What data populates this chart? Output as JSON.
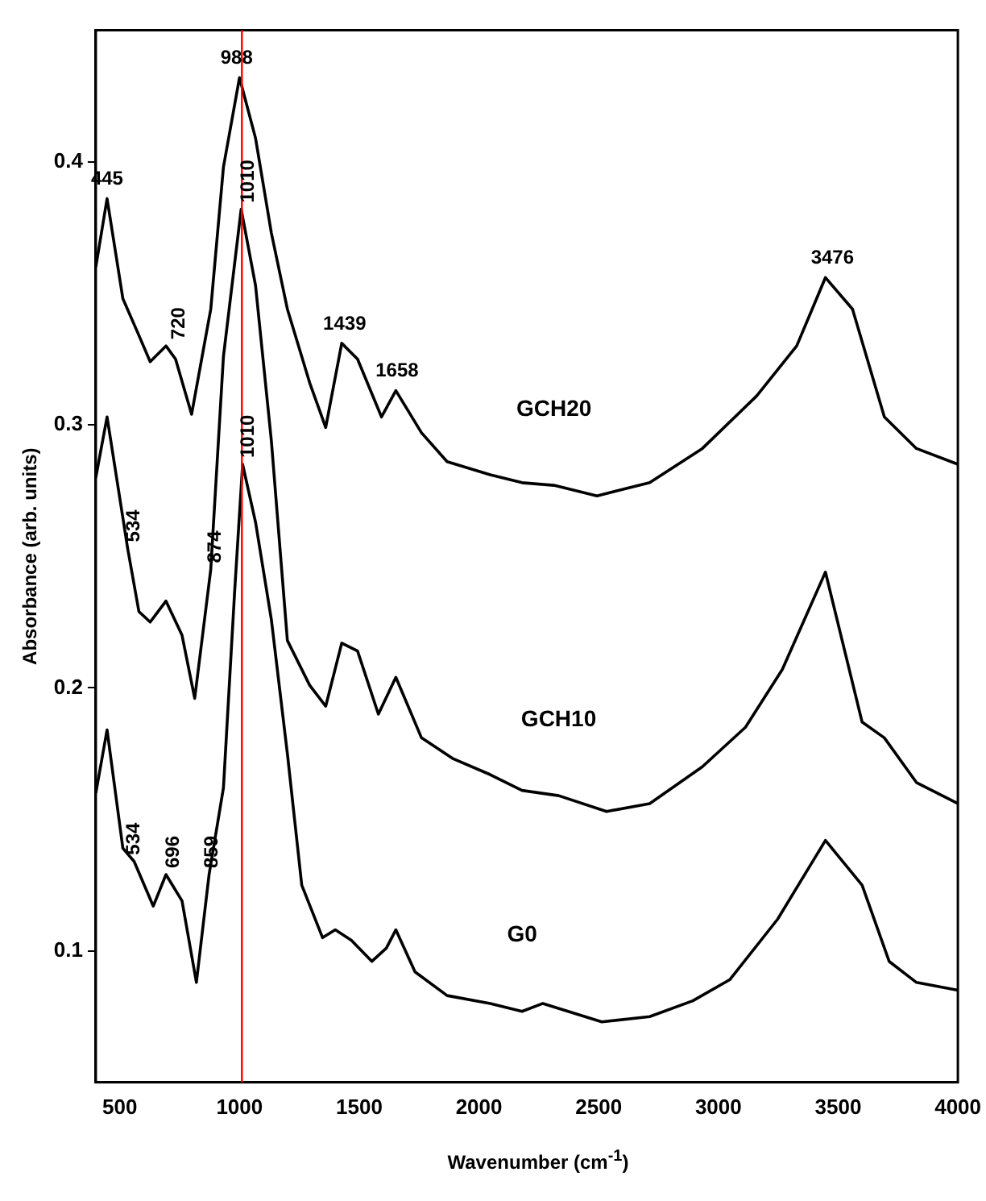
{
  "chart_data": {
    "type": "line",
    "xlabel": "Wavenumber (cm$^{-1}$)",
    "ylabel": "Absorbance (arb. units)",
    "xlim": [
      400,
      4000
    ],
    "ylim": [
      0.05,
      0.45
    ],
    "xticks": [
      500,
      1000,
      1500,
      2000,
      2500,
      3000,
      3500,
      4000
    ],
    "yticks": [
      0.1,
      0.2,
      0.3,
      0.4
    ],
    "grid": false,
    "legend": false,
    "marker": "none",
    "line_style": "solid",
    "series": [
      {
        "name": "GCH20",
        "color": "#000000",
        "x": [
          400,
          447,
          513,
          580,
          627,
          693,
          733,
          800,
          880,
          933,
          1000,
          1067,
          1133,
          1200,
          1293,
          1360,
          1427,
          1493,
          1593,
          1653,
          1760,
          1867,
          2047,
          2180,
          2313,
          2493,
          2713,
          2933,
          3160,
          3327,
          3447,
          3560,
          3693,
          3827,
          4000
        ],
        "values": [
          0.36,
          0.386,
          0.348,
          0.334,
          0.324,
          0.33,
          0.325,
          0.304,
          0.344,
          0.398,
          0.432,
          0.409,
          0.373,
          0.344,
          0.316,
          0.299,
          0.331,
          0.325,
          0.303,
          0.313,
          0.297,
          0.286,
          0.281,
          0.278,
          0.277,
          0.273,
          0.278,
          0.291,
          0.311,
          0.33,
          0.356,
          0.344,
          0.303,
          0.291,
          0.285
        ]
      },
      {
        "name": "GCH10",
        "color": "#000000",
        "x": [
          400,
          447,
          533,
          580,
          627,
          693,
          760,
          813,
          880,
          933,
          1007,
          1067,
          1133,
          1200,
          1293,
          1360,
          1427,
          1493,
          1580,
          1653,
          1760,
          1893,
          2047,
          2180,
          2333,
          2533,
          2713,
          2933,
          3113,
          3267,
          3447,
          3600,
          3693,
          3827,
          4000
        ],
        "values": [
          0.28,
          0.303,
          0.253,
          0.229,
          0.225,
          0.233,
          0.22,
          0.196,
          0.245,
          0.326,
          0.382,
          0.353,
          0.294,
          0.218,
          0.201,
          0.193,
          0.217,
          0.214,
          0.19,
          0.204,
          0.181,
          0.173,
          0.167,
          0.161,
          0.159,
          0.153,
          0.156,
          0.17,
          0.185,
          0.207,
          0.244,
          0.187,
          0.181,
          0.164,
          0.156
        ]
      },
      {
        "name": "G0",
        "color": "#000000",
        "x": [
          400,
          447,
          513,
          560,
          640,
          693,
          760,
          820,
          873,
          933,
          980,
          1013,
          1067,
          1133,
          1200,
          1260,
          1347,
          1400,
          1467,
          1553,
          1613,
          1653,
          1733,
          1867,
          2047,
          2180,
          2267,
          2513,
          2713,
          2893,
          3047,
          3247,
          3447,
          3600,
          3713,
          3827,
          4000
        ],
        "values": [
          0.16,
          0.184,
          0.139,
          0.134,
          0.117,
          0.129,
          0.119,
          0.088,
          0.129,
          0.162,
          0.237,
          0.285,
          0.263,
          0.226,
          0.175,
          0.125,
          0.105,
          0.108,
          0.104,
          0.096,
          0.101,
          0.108,
          0.092,
          0.083,
          0.08,
          0.077,
          0.08,
          0.073,
          0.075,
          0.081,
          0.089,
          0.112,
          0.142,
          0.125,
          0.096,
          0.088,
          0.085
        ]
      }
    ],
    "ref_lines": [
      {
        "axis": "x",
        "value": 1010,
        "color": "#ff0000",
        "line_style": "solid"
      }
    ],
    "annotations": [
      {
        "text": "445",
        "x": 447,
        "y": 0.386
      },
      {
        "text": "988",
        "x": 988,
        "y": 0.432
      },
      {
        "text": "720",
        "x": 720,
        "y": 0.33
      },
      {
        "text": "1010",
        "x": 1010,
        "y": 0.382
      },
      {
        "text": "1439",
        "x": 1439,
        "y": 0.331
      },
      {
        "text": "1658",
        "x": 1658,
        "y": 0.313
      },
      {
        "text": "3476",
        "x": 3476,
        "y": 0.356
      },
      {
        "text": "534",
        "x": 534,
        "y": 0.253
      },
      {
        "text": "874",
        "x": 874,
        "y": 0.245
      },
      {
        "text": "1010",
        "x": 1010,
        "y": 0.285
      },
      {
        "text": "534",
        "x": 534,
        "y": 0.134
      },
      {
        "text": "696",
        "x": 696,
        "y": 0.129
      },
      {
        "text": "859",
        "x": 859,
        "y": 0.129
      }
    ]
  }
}
